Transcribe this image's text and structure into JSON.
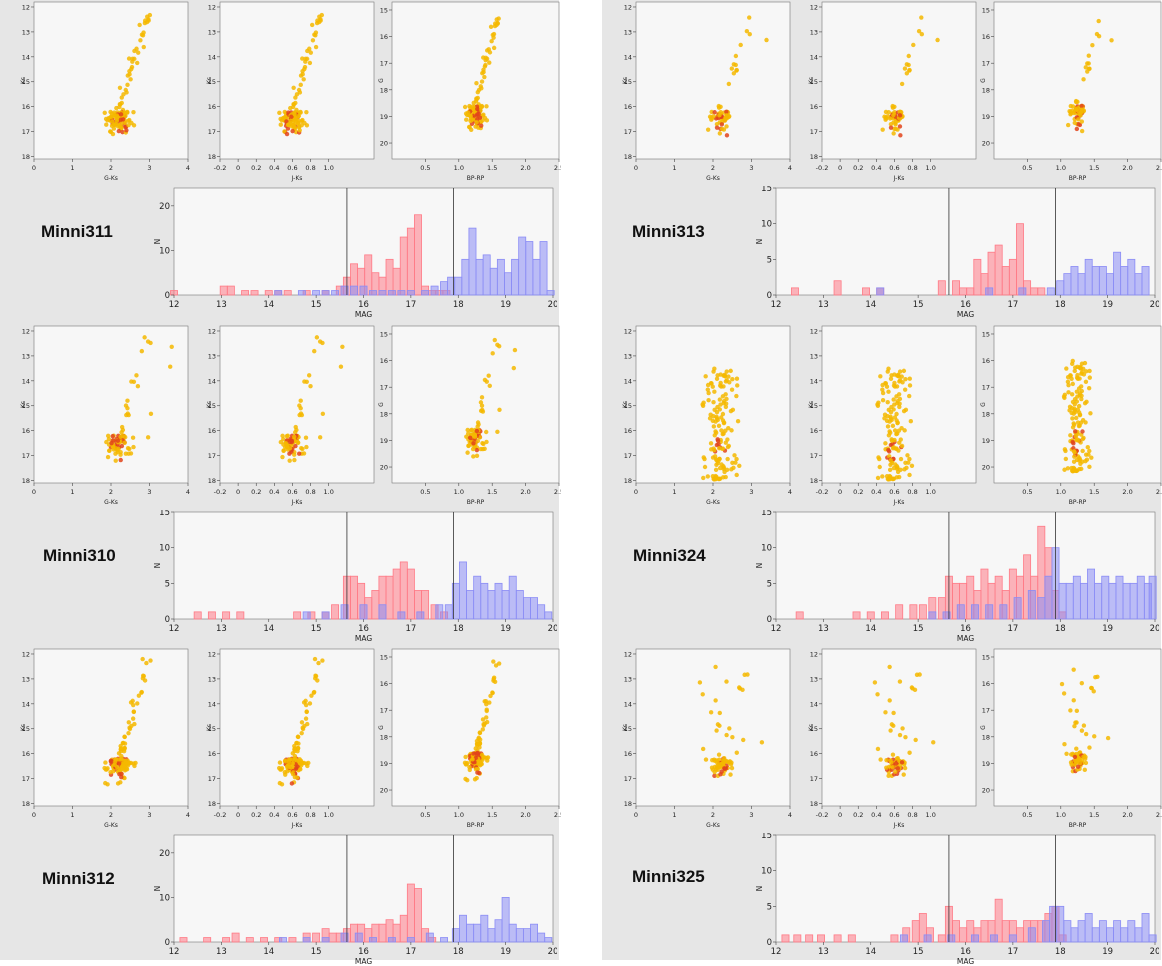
{
  "colors": {
    "panel_bg": "#e6e6e6",
    "plot_bg": "#f7f7f7",
    "star": "#f5b800",
    "star_dense": "#e2441b",
    "hist_bright": "#ff7a86",
    "hist_faint": "#8a8cf5",
    "guide_line": "#333333"
  },
  "axis_text": {
    "ks": "Ks",
    "g": "G",
    "n": "N",
    "mag": "MAG",
    "g_ks": "G-Ks",
    "j_ks": "J-Ks",
    "bp_rp": "BP-RP",
    "ks_ticks": [
      "12",
      "13",
      "14",
      "15",
      "16",
      "17",
      "18"
    ],
    "g_ticks": [
      "15",
      "16",
      "17",
      "18",
      "19",
      "20"
    ],
    "gks_ticks": [
      "0",
      "1",
      "2",
      "3",
      "4"
    ],
    "jks_ticks": [
      "-0.2",
      "0",
      "0.2",
      "0.4",
      "0.6",
      "0.8",
      "1.0"
    ],
    "bprp_ticks": [
      "0.5",
      "1.0",
      "1.5",
      "2.0",
      "2.5"
    ],
    "mag_ticks": [
      "12",
      "13",
      "14",
      "15",
      "16",
      "17",
      "18",
      "19",
      "20"
    ],
    "n_ticks_20": [
      "0",
      "10",
      "20"
    ],
    "n_ticks_15": [
      "0",
      "5",
      "10",
      "15"
    ]
  },
  "chart_data": [
    {
      "type": "scatter+histogram",
      "title": "Minni311",
      "hist_ylim": [
        0,
        24
      ],
      "n_ticks": "n_ticks_20",
      "guide_lines_mag": [
        15.65,
        17.9
      ],
      "seed": 11,
      "n_stars": 130,
      "scatter_shape": "rgb"
    },
    {
      "type": "scatter+histogram",
      "title": "Minni313",
      "hist_ylim": [
        0,
        15
      ],
      "n_ticks": "n_ticks_15",
      "guide_lines_mag": [
        15.65,
        17.9
      ],
      "seed": 13,
      "n_stars": 70,
      "scatter_shape": "rgb_sparse"
    },
    {
      "type": "scatter+histogram",
      "title": "Minni310",
      "hist_ylim": [
        0,
        15
      ],
      "n_ticks": "n_ticks_15",
      "guide_lines_mag": [
        15.65,
        17.9
      ],
      "seed": 10,
      "n_stars": 90,
      "scatter_shape": "rgb_sparse"
    },
    {
      "type": "scatter+histogram",
      "title": "Minni324",
      "hist_ylim": [
        0,
        15
      ],
      "n_ticks": "n_ticks_15",
      "guide_lines_mag": [
        15.65,
        17.9
      ],
      "seed": 24,
      "n_stars": 140,
      "scatter_shape": "ms"
    },
    {
      "type": "scatter+histogram",
      "title": "Minni312",
      "hist_ylim": [
        0,
        24
      ],
      "n_ticks": "n_ticks_20",
      "guide_lines_mag": [
        15.65,
        17.9
      ],
      "seed": 12,
      "n_stars": 130,
      "scatter_shape": "rgb"
    },
    {
      "type": "scatter+histogram",
      "title": "Minni325",
      "hist_ylim": [
        0,
        15
      ],
      "n_ticks": "n_ticks_15",
      "guide_lines_mag": [
        15.65,
        17.9
      ],
      "seed": 25,
      "n_stars": 75,
      "scatter_shape": "mixed"
    }
  ],
  "histograms": {
    "Minni311": {
      "bright": [
        [
          12.0,
          1
        ],
        [
          13.05,
          2
        ],
        [
          13.2,
          2
        ],
        [
          13.5,
          1
        ],
        [
          13.7,
          1
        ],
        [
          14.0,
          1
        ],
        [
          14.2,
          1
        ],
        [
          14.4,
          1
        ],
        [
          14.8,
          1
        ],
        [
          15.2,
          1
        ],
        [
          15.5,
          2
        ],
        [
          15.65,
          4
        ],
        [
          15.8,
          7
        ],
        [
          15.95,
          6
        ],
        [
          16.1,
          9
        ],
        [
          16.25,
          5
        ],
        [
          16.4,
          4
        ],
        [
          16.55,
          8
        ],
        [
          16.7,
          6
        ],
        [
          16.85,
          13
        ],
        [
          17.0,
          15
        ],
        [
          17.15,
          18
        ],
        [
          17.3,
          2
        ],
        [
          17.45,
          1
        ],
        [
          17.6,
          1
        ],
        [
          17.75,
          1
        ]
      ],
      "faint": [
        [
          14.2,
          1
        ],
        [
          14.7,
          1
        ],
        [
          15.0,
          1
        ],
        [
          15.2,
          1
        ],
        [
          15.4,
          1
        ],
        [
          15.6,
          2
        ],
        [
          15.8,
          2
        ],
        [
          16.0,
          2
        ],
        [
          16.2,
          1
        ],
        [
          16.4,
          1
        ],
        [
          16.6,
          1
        ],
        [
          16.8,
          1
        ],
        [
          17.0,
          1
        ],
        [
          17.3,
          1
        ],
        [
          17.5,
          2
        ],
        [
          17.7,
          3
        ],
        [
          17.85,
          4
        ],
        [
          18.0,
          4
        ],
        [
          18.15,
          8
        ],
        [
          18.3,
          15
        ],
        [
          18.45,
          8
        ],
        [
          18.6,
          9
        ],
        [
          18.75,
          6
        ],
        [
          18.9,
          8
        ],
        [
          19.05,
          5
        ],
        [
          19.2,
          8
        ],
        [
          19.35,
          13
        ],
        [
          19.5,
          12
        ],
        [
          19.65,
          8
        ],
        [
          19.8,
          12
        ],
        [
          19.95,
          1
        ]
      ]
    },
    "Minni313": {
      "bright": [
        [
          12.4,
          1
        ],
        [
          13.3,
          2
        ],
        [
          13.9,
          1
        ],
        [
          14.2,
          1
        ],
        [
          15.5,
          2
        ],
        [
          15.8,
          2
        ],
        [
          15.95,
          1
        ],
        [
          16.1,
          1
        ],
        [
          16.25,
          5
        ],
        [
          16.4,
          3
        ],
        [
          16.55,
          6
        ],
        [
          16.7,
          7
        ],
        [
          16.85,
          4
        ],
        [
          17.0,
          5
        ],
        [
          17.15,
          10
        ],
        [
          17.3,
          2
        ],
        [
          17.45,
          1
        ],
        [
          17.6,
          1
        ]
      ],
      "faint": [
        [
          14.2,
          1
        ],
        [
          16.5,
          1
        ],
        [
          17.2,
          1
        ],
        [
          17.8,
          1
        ],
        [
          18.0,
          2
        ],
        [
          18.15,
          3
        ],
        [
          18.3,
          4
        ],
        [
          18.45,
          3
        ],
        [
          18.6,
          5
        ],
        [
          18.75,
          4
        ],
        [
          18.9,
          4
        ],
        [
          19.05,
          3
        ],
        [
          19.2,
          6
        ],
        [
          19.35,
          4
        ],
        [
          19.5,
          5
        ],
        [
          19.65,
          3
        ],
        [
          19.8,
          4
        ]
      ]
    },
    "Minni310": {
      "bright": [
        [
          12.5,
          1
        ],
        [
          12.8,
          1
        ],
        [
          13.1,
          1
        ],
        [
          13.4,
          1
        ],
        [
          14.6,
          1
        ],
        [
          14.9,
          1
        ],
        [
          15.2,
          1
        ],
        [
          15.4,
          2
        ],
        [
          15.65,
          6
        ],
        [
          15.8,
          6
        ],
        [
          15.95,
          5
        ],
        [
          16.1,
          3
        ],
        [
          16.25,
          4
        ],
        [
          16.4,
          6
        ],
        [
          16.55,
          6
        ],
        [
          16.7,
          7
        ],
        [
          16.85,
          8
        ],
        [
          17.0,
          7
        ],
        [
          17.15,
          4
        ],
        [
          17.3,
          4
        ],
        [
          17.5,
          2
        ],
        [
          17.7,
          1
        ]
      ],
      "faint": [
        [
          14.8,
          1
        ],
        [
          15.2,
          1
        ],
        [
          15.6,
          2
        ],
        [
          16.0,
          2
        ],
        [
          16.4,
          2
        ],
        [
          16.8,
          1
        ],
        [
          17.2,
          1
        ],
        [
          17.6,
          2
        ],
        [
          17.8,
          2
        ],
        [
          17.95,
          5
        ],
        [
          18.1,
          8
        ],
        [
          18.25,
          4
        ],
        [
          18.4,
          6
        ],
        [
          18.55,
          5
        ],
        [
          18.7,
          4
        ],
        [
          18.85,
          5
        ],
        [
          19.0,
          4
        ],
        [
          19.15,
          6
        ],
        [
          19.3,
          4
        ],
        [
          19.45,
          3
        ],
        [
          19.6,
          3
        ],
        [
          19.75,
          2
        ],
        [
          19.9,
          1
        ]
      ]
    },
    "Minni324": {
      "bright": [
        [
          12.5,
          1
        ],
        [
          13.7,
          1
        ],
        [
          14.0,
          1
        ],
        [
          14.3,
          1
        ],
        [
          14.6,
          2
        ],
        [
          14.9,
          2
        ],
        [
          15.1,
          2
        ],
        [
          15.3,
          3
        ],
        [
          15.5,
          3
        ],
        [
          15.65,
          6
        ],
        [
          15.8,
          5
        ],
        [
          15.95,
          5
        ],
        [
          16.1,
          6
        ],
        [
          16.25,
          4
        ],
        [
          16.4,
          7
        ],
        [
          16.55,
          5
        ],
        [
          16.7,
          6
        ],
        [
          16.85,
          4
        ],
        [
          17.0,
          7
        ],
        [
          17.15,
          6
        ],
        [
          17.3,
          9
        ],
        [
          17.45,
          6
        ],
        [
          17.6,
          13
        ],
        [
          17.75,
          10
        ],
        [
          17.9,
          4
        ],
        [
          18.05,
          1
        ]
      ],
      "faint": [
        [
          15.3,
          1
        ],
        [
          15.6,
          1
        ],
        [
          15.9,
          2
        ],
        [
          16.2,
          2
        ],
        [
          16.5,
          2
        ],
        [
          16.8,
          2
        ],
        [
          17.1,
          3
        ],
        [
          17.4,
          4
        ],
        [
          17.6,
          3
        ],
        [
          17.75,
          6
        ],
        [
          17.9,
          10
        ],
        [
          18.05,
          5
        ],
        [
          18.2,
          5
        ],
        [
          18.35,
          6
        ],
        [
          18.5,
          5
        ],
        [
          18.65,
          7
        ],
        [
          18.8,
          5
        ],
        [
          18.95,
          6
        ],
        [
          19.1,
          5
        ],
        [
          19.25,
          6
        ],
        [
          19.4,
          5
        ],
        [
          19.55,
          5
        ],
        [
          19.7,
          6
        ],
        [
          19.85,
          5
        ],
        [
          19.95,
          6
        ]
      ]
    },
    "Minni312": {
      "bright": [
        [
          12.2,
          1
        ],
        [
          12.7,
          1
        ],
        [
          13.1,
          1
        ],
        [
          13.3,
          2
        ],
        [
          13.6,
          1
        ],
        [
          13.9,
          1
        ],
        [
          14.2,
          1
        ],
        [
          14.5,
          1
        ],
        [
          14.8,
          2
        ],
        [
          15.0,
          2
        ],
        [
          15.2,
          3
        ],
        [
          15.35,
          2
        ],
        [
          15.5,
          2
        ],
        [
          15.65,
          3
        ],
        [
          15.8,
          4
        ],
        [
          15.95,
          4
        ],
        [
          16.1,
          3
        ],
        [
          16.25,
          4
        ],
        [
          16.4,
          4
        ],
        [
          16.55,
          5
        ],
        [
          16.7,
          4
        ],
        [
          16.85,
          6
        ],
        [
          17.0,
          13
        ],
        [
          17.15,
          12
        ],
        [
          17.3,
          3
        ],
        [
          17.45,
          1
        ]
      ],
      "faint": [
        [
          14.3,
          1
        ],
        [
          14.8,
          1
        ],
        [
          15.2,
          1
        ],
        [
          15.6,
          2
        ],
        [
          15.9,
          2
        ],
        [
          16.2,
          1
        ],
        [
          16.6,
          1
        ],
        [
          17.0,
          1
        ],
        [
          17.4,
          2
        ],
        [
          17.7,
          1
        ],
        [
          17.95,
          3
        ],
        [
          18.1,
          6
        ],
        [
          18.25,
          4
        ],
        [
          18.4,
          4
        ],
        [
          18.55,
          6
        ],
        [
          18.7,
          3
        ],
        [
          18.85,
          5
        ],
        [
          19.0,
          10
        ],
        [
          19.15,
          4
        ],
        [
          19.3,
          3
        ],
        [
          19.45,
          3
        ],
        [
          19.6,
          4
        ],
        [
          19.75,
          2
        ],
        [
          19.9,
          1
        ]
      ]
    },
    "Minni325": {
      "bright": [
        [
          12.2,
          1
        ],
        [
          12.45,
          1
        ],
        [
          12.7,
          1
        ],
        [
          12.95,
          1
        ],
        [
          13.3,
          1
        ],
        [
          13.6,
          1
        ],
        [
          14.5,
          1
        ],
        [
          14.75,
          2
        ],
        [
          14.95,
          3
        ],
        [
          15.1,
          4
        ],
        [
          15.25,
          2
        ],
        [
          15.5,
          1
        ],
        [
          15.65,
          5
        ],
        [
          15.8,
          3
        ],
        [
          15.95,
          2
        ],
        [
          16.1,
          3
        ],
        [
          16.25,
          2
        ],
        [
          16.4,
          3
        ],
        [
          16.55,
          3
        ],
        [
          16.7,
          6
        ],
        [
          16.85,
          3
        ],
        [
          17.0,
          3
        ],
        [
          17.15,
          2
        ],
        [
          17.3,
          3
        ],
        [
          17.45,
          3
        ],
        [
          17.6,
          3
        ],
        [
          17.75,
          4
        ],
        [
          17.9,
          5
        ],
        [
          18.05,
          1
        ]
      ],
      "faint": [
        [
          14.7,
          1
        ],
        [
          15.2,
          1
        ],
        [
          15.7,
          1
        ],
        [
          16.2,
          1
        ],
        [
          16.6,
          1
        ],
        [
          17.0,
          1
        ],
        [
          17.4,
          2
        ],
        [
          17.7,
          3
        ],
        [
          17.85,
          5
        ],
        [
          18.0,
          5
        ],
        [
          18.15,
          3
        ],
        [
          18.3,
          2
        ],
        [
          18.45,
          3
        ],
        [
          18.6,
          4
        ],
        [
          18.75,
          2
        ],
        [
          18.9,
          3
        ],
        [
          19.05,
          2
        ],
        [
          19.2,
          3
        ],
        [
          19.35,
          2
        ],
        [
          19.5,
          3
        ],
        [
          19.65,
          2
        ],
        [
          19.8,
          4
        ],
        [
          19.95,
          1
        ]
      ]
    }
  }
}
